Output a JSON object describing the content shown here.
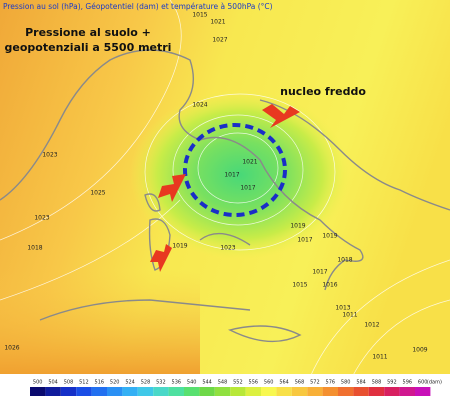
{
  "header": {
    "title": "Pression au sol (hPa), Géopotentiel (dam) et température à 500hPa (°C)"
  },
  "annotations": {
    "main": [
      "Pressione al suolo +",
      "geopotenziali a 5500 metri"
    ],
    "cold_core": "nucleo freddo"
  },
  "isobar_labels": [
    1015,
    1023,
    1021,
    1027,
    1024,
    1025,
    1023,
    1023,
    1018,
    1019,
    1019,
    1017,
    1021,
    1017,
    1017,
    1019,
    1018,
    1017,
    1016,
    1015,
    1013,
    1011,
    1012,
    1011,
    1009,
    1026
  ],
  "colorbar": {
    "unit": "(dam)",
    "values": [
      500,
      504,
      508,
      512,
      516,
      520,
      524,
      528,
      532,
      536,
      540,
      544,
      548,
      552,
      556,
      560,
      564,
      568,
      572,
      576,
      580,
      584,
      588,
      592,
      596,
      600
    ],
    "colors": [
      "#0a0a6e",
      "#101c9c",
      "#1530c8",
      "#1a4ee6",
      "#2270f0",
      "#2a90f4",
      "#34b0f4",
      "#40c8e8",
      "#4ad8c8",
      "#4ee0a0",
      "#58e070",
      "#6ed848",
      "#90e040",
      "#b8e838",
      "#dcf040",
      "#f8f850",
      "#f8e048",
      "#f8c840",
      "#f8b038",
      "#f49030",
      "#f07030",
      "#e85030",
      "#e03040",
      "#d82060",
      "#d01890",
      "#c810b8"
    ]
  }
}
